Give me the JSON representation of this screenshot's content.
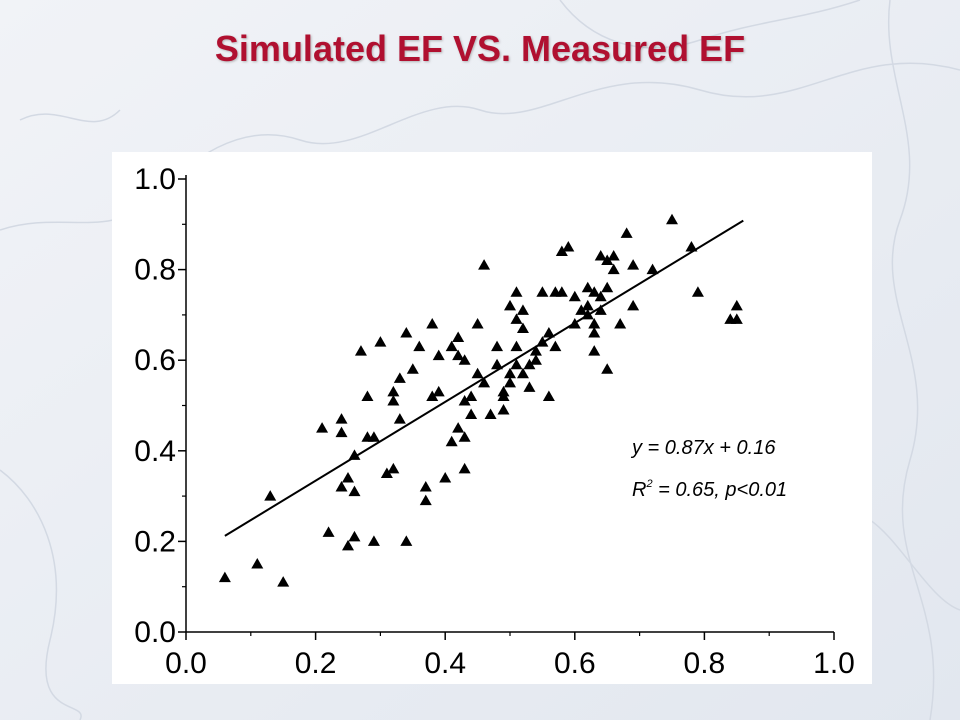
{
  "slide": {
    "title": "Simulated EF VS. Measured EF",
    "title_color": "#b01030",
    "background_color": "#e9edf3"
  },
  "chart_data": {
    "type": "scatter",
    "title": "Simulated EF VS. Measured EF",
    "xlabel": "",
    "ylabel": "",
    "xlim": [
      0.0,
      1.0
    ],
    "ylim": [
      0.0,
      1.0
    ],
    "x_ticks": [
      "0.0",
      "0.2",
      "0.4",
      "0.6",
      "0.8",
      "1.0"
    ],
    "y_ticks": [
      "0.0",
      "0.2",
      "0.4",
      "0.6",
      "0.8",
      "1.0"
    ],
    "grid": false,
    "marker": "triangle",
    "marker_color": "#000000",
    "regression": {
      "slope": 0.87,
      "intercept": 0.16,
      "x_range": [
        0.06,
        0.86
      ],
      "equation": "y = 0.87x + 0.16",
      "r2_prefix": "R",
      "r2_sup": "2",
      "r2_rest": " = 0.65, p<0.01"
    },
    "points": [
      [
        0.06,
        0.12
      ],
      [
        0.11,
        0.15
      ],
      [
        0.15,
        0.11
      ],
      [
        0.13,
        0.3
      ],
      [
        0.21,
        0.45
      ],
      [
        0.22,
        0.22
      ],
      [
        0.24,
        0.47
      ],
      [
        0.24,
        0.32
      ],
      [
        0.24,
        0.44
      ],
      [
        0.25,
        0.19
      ],
      [
        0.25,
        0.34
      ],
      [
        0.26,
        0.21
      ],
      [
        0.26,
        0.31
      ],
      [
        0.26,
        0.39
      ],
      [
        0.27,
        0.62
      ],
      [
        0.28,
        0.43
      ],
      [
        0.28,
        0.52
      ],
      [
        0.29,
        0.43
      ],
      [
        0.29,
        0.2
      ],
      [
        0.3,
        0.64
      ],
      [
        0.31,
        0.35
      ],
      [
        0.32,
        0.36
      ],
      [
        0.32,
        0.51
      ],
      [
        0.32,
        0.53
      ],
      [
        0.33,
        0.56
      ],
      [
        0.33,
        0.47
      ],
      [
        0.34,
        0.2
      ],
      [
        0.34,
        0.66
      ],
      [
        0.35,
        0.58
      ],
      [
        0.36,
        0.63
      ],
      [
        0.37,
        0.29
      ],
      [
        0.37,
        0.32
      ],
      [
        0.38,
        0.52
      ],
      [
        0.38,
        0.68
      ],
      [
        0.39,
        0.61
      ],
      [
        0.39,
        0.53
      ],
      [
        0.4,
        0.34
      ],
      [
        0.41,
        0.42
      ],
      [
        0.41,
        0.63
      ],
      [
        0.42,
        0.61
      ],
      [
        0.42,
        0.45
      ],
      [
        0.42,
        0.65
      ],
      [
        0.43,
        0.36
      ],
      [
        0.43,
        0.51
      ],
      [
        0.43,
        0.6
      ],
      [
        0.43,
        0.43
      ],
      [
        0.44,
        0.48
      ],
      [
        0.44,
        0.52
      ],
      [
        0.45,
        0.57
      ],
      [
        0.45,
        0.68
      ],
      [
        0.46,
        0.55
      ],
      [
        0.46,
        0.81
      ],
      [
        0.47,
        0.48
      ],
      [
        0.48,
        0.63
      ],
      [
        0.48,
        0.59
      ],
      [
        0.49,
        0.49
      ],
      [
        0.49,
        0.53
      ],
      [
        0.49,
        0.52
      ],
      [
        0.5,
        0.57
      ],
      [
        0.5,
        0.55
      ],
      [
        0.5,
        0.72
      ],
      [
        0.51,
        0.63
      ],
      [
        0.51,
        0.69
      ],
      [
        0.51,
        0.59
      ],
      [
        0.51,
        0.75
      ],
      [
        0.52,
        0.67
      ],
      [
        0.52,
        0.71
      ],
      [
        0.52,
        0.57
      ],
      [
        0.53,
        0.59
      ],
      [
        0.53,
        0.54
      ],
      [
        0.54,
        0.6
      ],
      [
        0.54,
        0.62
      ],
      [
        0.55,
        0.64
      ],
      [
        0.55,
        0.75
      ],
      [
        0.56,
        0.66
      ],
      [
        0.56,
        0.52
      ],
      [
        0.57,
        0.75
      ],
      [
        0.57,
        0.63
      ],
      [
        0.58,
        0.75
      ],
      [
        0.58,
        0.84
      ],
      [
        0.59,
        0.85
      ],
      [
        0.6,
        0.74
      ],
      [
        0.6,
        0.68
      ],
      [
        0.61,
        0.71
      ],
      [
        0.62,
        0.7
      ],
      [
        0.62,
        0.72
      ],
      [
        0.62,
        0.76
      ],
      [
        0.63,
        0.75
      ],
      [
        0.63,
        0.68
      ],
      [
        0.63,
        0.66
      ],
      [
        0.63,
        0.62
      ],
      [
        0.64,
        0.74
      ],
      [
        0.64,
        0.83
      ],
      [
        0.64,
        0.71
      ],
      [
        0.65,
        0.58
      ],
      [
        0.65,
        0.76
      ],
      [
        0.65,
        0.82
      ],
      [
        0.66,
        0.8
      ],
      [
        0.66,
        0.83
      ],
      [
        0.67,
        0.68
      ],
      [
        0.68,
        0.88
      ],
      [
        0.69,
        0.72
      ],
      [
        0.69,
        0.81
      ],
      [
        0.72,
        0.8
      ],
      [
        0.75,
        0.91
      ],
      [
        0.78,
        0.85
      ],
      [
        0.79,
        0.75
      ],
      [
        0.84,
        0.69
      ],
      [
        0.85,
        0.69
      ],
      [
        0.85,
        0.72
      ]
    ]
  }
}
